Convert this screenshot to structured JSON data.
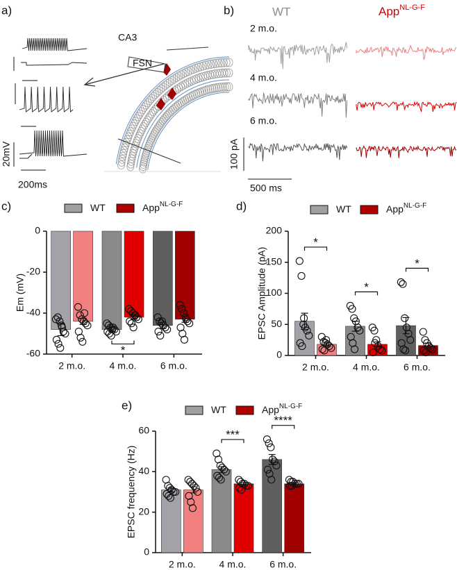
{
  "panel_a": {
    "panel_label": "a)",
    "region_label": "CA3",
    "cell_label": "FSN",
    "voltage_scale": "20mV",
    "time_scale": "200ms"
  },
  "panel_b": {
    "panel_label": "b)",
    "wt_label": "WT",
    "app_label": "App",
    "app_superscript": "NL-G-F",
    "rows": [
      "2 m.o.",
      "4 m.o.",
      "6 m.o."
    ],
    "current_scale": "100 pA",
    "time_scale": "500 ms"
  },
  "chart_data": [
    {
      "type": "bar",
      "panel_label": "c)",
      "y_label": "Em (mV)",
      "categories": [
        "2 m.o.",
        "4 m.o.",
        "6 m.o."
      ],
      "ylim": [
        -60,
        0
      ],
      "yticks": [
        0,
        -20,
        -40,
        -60
      ],
      "significance": [
        null,
        "*",
        null
      ],
      "series": [
        {
          "name": "WT",
          "color": "#a0a0a0",
          "colors": [
            "#a4a2a8",
            "#8a8a8a",
            "#5f5f5f"
          ],
          "values": [
            -48,
            -48,
            -46
          ],
          "errors": [
            3,
            1,
            1.5
          ],
          "points": [
            [
              -43,
              -42,
              -44,
              -46,
              -49,
              -50,
              -53,
              -55,
              -57,
              -47
            ],
            [
              -45,
              -46,
              -47,
              -48,
              -48,
              -49,
              -49,
              -50,
              -51,
              -47
            ],
            [
              -42,
              -44,
              -45,
              -46,
              -47,
              -48,
              -49,
              -51,
              -44
            ]
          ]
        },
        {
          "name": "App",
          "name_superscript": "NL-G-F",
          "color": "#b00000",
          "colors": [
            "#f28080",
            "#e00000",
            "#a00000"
          ],
          "values": [
            -44,
            -42,
            -43
          ],
          "errors": [
            1.5,
            1,
            1.5
          ],
          "points": [
            [
              -37,
              -41,
              -43,
              -44,
              -45,
              -46,
              -49,
              -52,
              -54,
              -40
            ],
            [
              -38,
              -39,
              -40,
              -41,
              -42,
              -43,
              -44,
              -45,
              -47,
              -41
            ],
            [
              -36,
              -38,
              -40,
              -42,
              -44,
              -45,
              -47,
              -50,
              -53,
              -43
            ]
          ]
        }
      ]
    },
    {
      "type": "bar",
      "panel_label": "d)",
      "y_label": "EPSC Amplitude (pA)",
      "categories": [
        "2 m.o.",
        "4 m.o.",
        "6 m.o."
      ],
      "ylim": [
        0,
        200
      ],
      "yticks": [
        0,
        50,
        100,
        150,
        200
      ],
      "significance": [
        "*",
        "*",
        "*"
      ],
      "series": [
        {
          "name": "WT",
          "color": "#a0a0a0",
          "colors": [
            "#a4a2a8",
            "#8a8a8a",
            "#5f5f5f"
          ],
          "values": [
            55,
            47,
            48
          ],
          "errors": [
            13,
            8,
            13
          ],
          "points": [
            [
              152,
              128,
              50,
              45,
              40,
              32,
              20,
              15,
              60
            ],
            [
              80,
              75,
              60,
              55,
              45,
              40,
              30,
              20,
              10
            ],
            [
              118,
              115,
              60,
              45,
              35,
              25,
              20,
              10,
              8
            ]
          ]
        },
        {
          "name": "App",
          "name_superscript": "NL-G-F",
          "color": "#b00000",
          "colors": [
            "#f28080",
            "#e00000",
            "#a00000"
          ],
          "values": [
            18,
            18,
            16
          ],
          "errors": [
            3,
            4,
            4
          ],
          "points": [
            [
              30,
              22,
              20,
              18,
              15,
              12,
              10,
              8,
              25
            ],
            [
              45,
              40,
              25,
              15,
              10,
              8,
              5,
              20
            ],
            [
              38,
              25,
              20,
              15,
              12,
              10,
              8,
              5
            ]
          ]
        }
      ]
    },
    {
      "type": "bar",
      "panel_label": "e)",
      "y_label": "EPSC frequency (Hz)",
      "categories": [
        "2 m.o.",
        "4 m.o.",
        "6 m.o."
      ],
      "ylim": [
        0,
        60
      ],
      "yticks": [
        0,
        20,
        40,
        60
      ],
      "significance": [
        null,
        "***",
        "****"
      ],
      "series": [
        {
          "name": "WT",
          "color": "#a0a0a0",
          "colors": [
            "#a4a2a8",
            "#8a8a8a",
            "#5f5f5f"
          ],
          "values": [
            31,
            41,
            46
          ],
          "errors": [
            1,
            1.5,
            2.5
          ],
          "points": [
            [
              36,
              33,
              32,
              31,
              30,
              30,
              29,
              28,
              27
            ],
            [
              49,
              46,
              43,
              42,
              41,
              40,
              38,
              37,
              36
            ],
            [
              56,
              54,
              52,
              46,
              45,
              43,
              41,
              39,
              36
            ]
          ]
        },
        {
          "name": "App",
          "name_superscript": "NL-G-F",
          "color": "#b00000",
          "colors": [
            "#f28080",
            "#e00000",
            "#a00000"
          ],
          "values": [
            31,
            34,
            34
          ],
          "errors": [
            1.5,
            0.7,
            0.5
          ],
          "points": [
            [
              36,
              35,
              34,
              33,
              32,
              30,
              28,
              25,
              22
            ],
            [
              36,
              35,
              34,
              34,
              33,
              33,
              32,
              31
            ],
            [
              36,
              35,
              35,
              34,
              34,
              34,
              33,
              33
            ]
          ]
        }
      ]
    }
  ]
}
